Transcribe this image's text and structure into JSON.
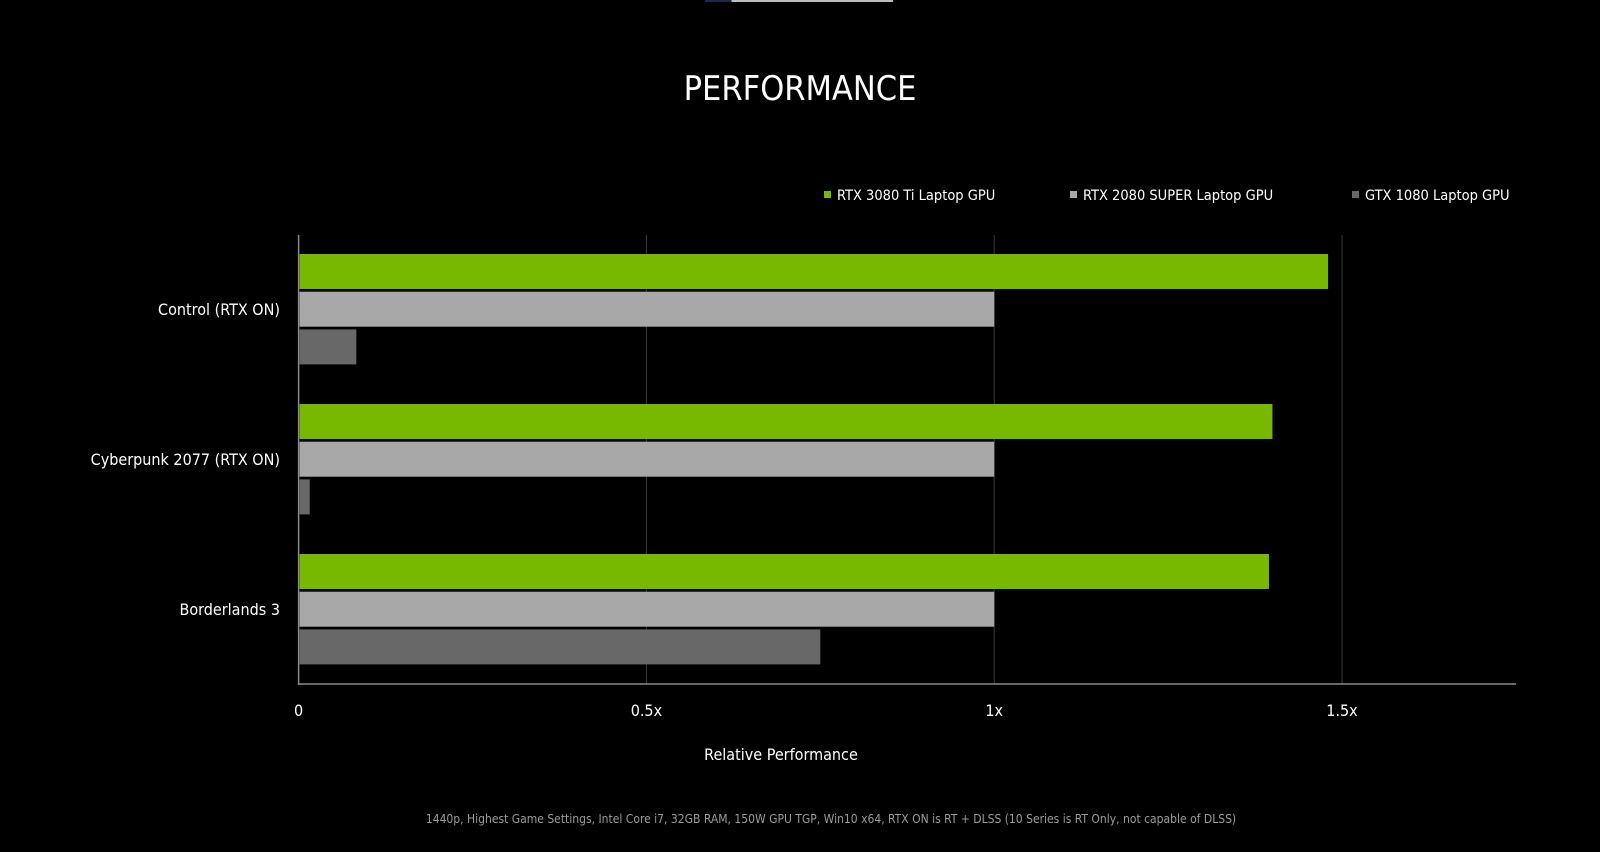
{
  "chart_data": {
    "type": "bar",
    "orientation": "horizontal",
    "title": "PERFORMANCE",
    "xlabel": "Relative Performance",
    "ylabel": "",
    "categories": [
      "Control (RTX ON)",
      "Cyberpunk 2077 (RTX ON)",
      "Borderlands 3"
    ],
    "series": [
      {
        "name": "RTX 3080 Ti Laptop GPU",
        "color": "#76b900",
        "values": [
          1.48,
          1.4,
          1.395
        ]
      },
      {
        "name": "RTX 2080 SUPER Laptop GPU",
        "color": "#a8a8a8",
        "values": [
          1.0,
          1.0,
          1.0
        ]
      },
      {
        "name": "GTX 1080 Laptop GPU",
        "color": "#686868",
        "values": [
          0.083,
          0.016,
          0.75
        ]
      }
    ],
    "xticks": [
      0,
      0.5,
      1,
      1.5
    ],
    "xtick_labels": [
      "0",
      "0.5x",
      "1x",
      "1.5x"
    ],
    "xlim": [
      0,
      1.75
    ],
    "grid": "vertical",
    "legend_position": "top-right",
    "footnote": "1440p, Highest Game Settings, Intel Core i7, 32GB RAM, 150W GPU TGP, Win10 x64, RTX ON is RT + DLSS (10 Series is RT Only, not capable of DLSS)"
  }
}
